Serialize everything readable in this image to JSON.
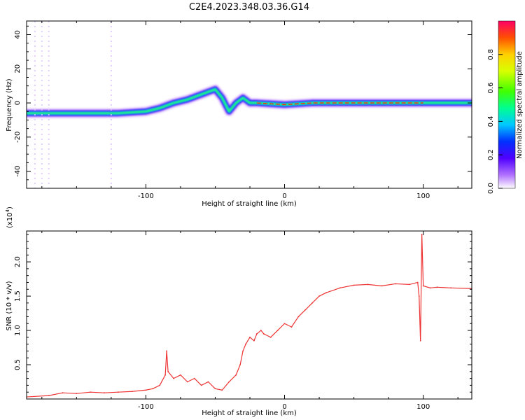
{
  "figure_title": "C2E4.2023.348.03.36.G14",
  "chart_data": [
    {
      "type": "heatmap",
      "xlabel": "Height of straight line (km)",
      "ylabel": "Frequency (Hz)",
      "xlim": [
        -186,
        135
      ],
      "ylim": [
        -50,
        48
      ],
      "xticks": [
        -100,
        0,
        100
      ],
      "yticks": [
        -40,
        -20,
        0,
        20,
        40
      ],
      "colorbar": {
        "label": "Normalized spectral amplitude",
        "range": [
          0,
          1
        ],
        "ticks": [
          0.0,
          0.2,
          0.4,
          0.6,
          0.8
        ]
      },
      "trace_description_points": [
        [
          -186,
          -6
        ],
        [
          -160,
          -6
        ],
        [
          -140,
          -6
        ],
        [
          -120,
          -6
        ],
        [
          -100,
          -5
        ],
        [
          -90,
          -3
        ],
        [
          -80,
          0
        ],
        [
          -70,
          2
        ],
        [
          -60,
          5
        ],
        [
          -50,
          8
        ],
        [
          -45,
          3
        ],
        [
          -40,
          -5
        ],
        [
          -35,
          0
        ],
        [
          -30,
          3
        ],
        [
          -25,
          0
        ],
        [
          -20,
          0
        ],
        [
          0,
          -1
        ],
        [
          20,
          0
        ],
        [
          50,
          0
        ],
        [
          100,
          0
        ],
        [
          135,
          0
        ]
      ]
    },
    {
      "type": "line",
      "xlabel": "Height of straight line (km)",
      "ylabel": "SNR (10 * v/v)",
      "exponent_label": "(x10",
      "exponent_sup": "4",
      "exponent_close": ")",
      "xlim": [
        -186,
        135
      ],
      "ylim": [
        0,
        24500
      ],
      "xticks": [
        -100,
        0,
        100
      ],
      "yticks": [
        0.5,
        1.0,
        1.5,
        2.0
      ],
      "series": [
        {
          "color": "#ee3333",
          "x": [
            -186,
            -170,
            -160,
            -150,
            -140,
            -130,
            -120,
            -110,
            -100,
            -95,
            -90,
            -86,
            -85,
            -84,
            -80,
            -75,
            -70,
            -65,
            -60,
            -55,
            -50,
            -45,
            -40,
            -35,
            -32,
            -30,
            -28,
            -25,
            -22,
            -20,
            -17,
            -15,
            -10,
            -5,
            0,
            5,
            10,
            15,
            20,
            25,
            30,
            40,
            50,
            60,
            70,
            80,
            90,
            96,
            97,
            98,
            99,
            100,
            105,
            110,
            120,
            135
          ],
          "y": [
            300,
            500,
            900,
            800,
            1000,
            900,
            1000,
            1100,
            1300,
            1500,
            2000,
            3500,
            7000,
            4000,
            3000,
            3500,
            2500,
            3000,
            2000,
            2500,
            1500,
            1300,
            2500,
            3500,
            5000,
            7000,
            8000,
            9000,
            8500,
            9500,
            10000,
            9500,
            9000,
            10000,
            11000,
            10500,
            12000,
            13000,
            14000,
            15000,
            15500,
            16200,
            16600,
            16700,
            16500,
            16800,
            16700,
            17000,
            15000,
            8500,
            24000,
            16500,
            16200,
            16300,
            16200,
            16100
          ]
        }
      ]
    }
  ]
}
